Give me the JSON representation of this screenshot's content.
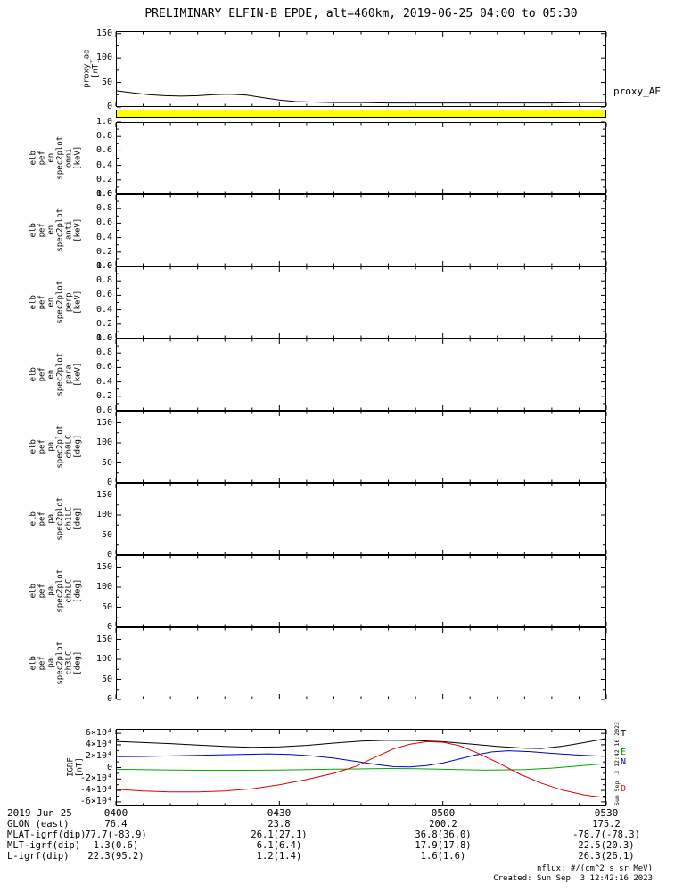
{
  "title": "PRELIMINARY ELFIN-B EPDE, alt=460km, 2019-06-25 04:00 to 05:30",
  "xaxis": {
    "range_min": [
      0,
      90
    ],
    "major_ticks_min": [
      0,
      30,
      60,
      90
    ],
    "major_tick_labels": [
      "0400",
      "0430",
      "0500",
      "0530"
    ],
    "minor_every_min": 5
  },
  "chart_data": [
    {
      "id": "proxy_ae",
      "type": "line",
      "ylabel_lines": [
        "proxy_ae",
        "[nT]"
      ],
      "ylim": [
        0,
        155
      ],
      "yticks": [
        0,
        50,
        100,
        150
      ],
      "ytick_labels": [
        "0",
        "50",
        "100",
        "150"
      ],
      "right_label": "proxy_AE",
      "series": [
        {
          "name": "proxy_AE",
          "color": "#000000",
          "points": [
            [
              0,
              33
            ],
            [
              3,
              29
            ],
            [
              6,
              25
            ],
            [
              9,
              23
            ],
            [
              12,
              22
            ],
            [
              15,
              23
            ],
            [
              18,
              25
            ],
            [
              21,
              26
            ],
            [
              24,
              24
            ],
            [
              27,
              19
            ],
            [
              30,
              14
            ],
            [
              33,
              11
            ],
            [
              36,
              10
            ],
            [
              40,
              9
            ],
            [
              45,
              9
            ],
            [
              50,
              8
            ],
            [
              55,
              8
            ],
            [
              60,
              8
            ],
            [
              65,
              8
            ],
            [
              70,
              8
            ],
            [
              75,
              8
            ],
            [
              80,
              8
            ],
            [
              85,
              9
            ],
            [
              90,
              9
            ]
          ]
        }
      ]
    },
    {
      "id": "epd_fast_bar",
      "type": "bar-strip",
      "fill": "#ffff00"
    },
    {
      "id": "elb_pef_en_spec2plot_omni",
      "type": "spec",
      "ylabel_lines": [
        "elb",
        "pef",
        "en",
        "spec2plot",
        "omni",
        "[keV]"
      ],
      "ylim": [
        0,
        1
      ],
      "yticks": [
        0,
        0.2,
        0.4,
        0.6,
        0.8,
        1
      ],
      "ytick_labels": [
        "0.0",
        "0.2",
        "0.4",
        "0.6",
        "0.8",
        "1.0"
      ],
      "series": []
    },
    {
      "id": "elb_pef_en_spec2plot_anti",
      "type": "spec",
      "ylabel_lines": [
        "elb",
        "pef",
        "en",
        "spec2plot",
        "anti",
        "[keV]"
      ],
      "ylim": [
        0,
        1
      ],
      "yticks": [
        0,
        0.2,
        0.4,
        0.6,
        0.8,
        1
      ],
      "ytick_labels": [
        "0.0",
        "0.2",
        "0.4",
        "0.6",
        "0.8",
        "1.0"
      ],
      "series": []
    },
    {
      "id": "elb_pef_en_spec2plot_perp",
      "type": "spec",
      "ylabel_lines": [
        "elb",
        "pef",
        "en",
        "spec2plot",
        "perp",
        "[keV]"
      ],
      "ylim": [
        0,
        1
      ],
      "yticks": [
        0,
        0.2,
        0.4,
        0.6,
        0.8,
        1
      ],
      "ytick_labels": [
        "0.0",
        "0.2",
        "0.4",
        "0.6",
        "0.8",
        "1.0"
      ],
      "series": []
    },
    {
      "id": "elb_pef_en_spec2plot_para",
      "type": "spec",
      "ylabel_lines": [
        "elb",
        "pef",
        "en",
        "spec2plot",
        "para",
        "[keV]"
      ],
      "ylim": [
        0,
        1
      ],
      "yticks": [
        0,
        0.2,
        0.4,
        0.6,
        0.8,
        1
      ],
      "ytick_labels": [
        "0.0",
        "0.2",
        "0.4",
        "0.6",
        "0.8",
        "1.0"
      ],
      "series": []
    },
    {
      "id": "elb_pef_pa_spec2plot_ch0LC",
      "type": "spec",
      "ylabel_lines": [
        "elb",
        "pef",
        "pa",
        "spec2plot",
        "ch0LC",
        "[deg]"
      ],
      "ylim": [
        0,
        180
      ],
      "yticks": [
        0,
        50,
        100,
        150
      ],
      "ytick_labels": [
        "0",
        "50",
        "100",
        "150"
      ],
      "series": []
    },
    {
      "id": "elb_pef_pa_spec2plot_ch1LC",
      "type": "spec",
      "ylabel_lines": [
        "elb",
        "pef",
        "pa",
        "spec2plot",
        "ch1LC",
        "[deg]"
      ],
      "ylim": [
        0,
        180
      ],
      "yticks": [
        0,
        50,
        100,
        150
      ],
      "ytick_labels": [
        "0",
        "50",
        "100",
        "150"
      ],
      "series": []
    },
    {
      "id": "elb_pef_pa_spec2plot_ch2LC",
      "type": "spec",
      "ylabel_lines": [
        "elb",
        "pef",
        "pa",
        "spec2plot",
        "ch2LC",
        "[deg]"
      ],
      "ylim": [
        0,
        180
      ],
      "yticks": [
        0,
        50,
        100,
        150
      ],
      "ytick_labels": [
        "0",
        "50",
        "100",
        "150"
      ],
      "series": []
    },
    {
      "id": "elb_pef_pa_spec2plot_ch3LC",
      "type": "spec",
      "ylabel_lines": [
        "elb",
        "pef",
        "pa",
        "spec2plot",
        "ch3LC",
        "[deg]"
      ],
      "ylim": [
        0,
        180
      ],
      "yticks": [
        0,
        50,
        100,
        150
      ],
      "ytick_labels": [
        "0",
        "50",
        "100",
        "150"
      ],
      "series": []
    },
    {
      "id": "igrf",
      "type": "line",
      "ylabel_lines": [
        "IGRF",
        "[nT]"
      ],
      "ylim": [
        -68000,
        68000
      ],
      "yticks": [
        -60000,
        -40000,
        -20000,
        0,
        20000,
        40000,
        60000
      ],
      "ytick_labels": [
        "-6×10⁴",
        "-4×10⁴",
        "-2×10⁴",
        "0",
        "2×10⁴",
        "4×10⁴",
        "6×10⁴"
      ],
      "series": [
        {
          "name": "T",
          "label": "T",
          "label_frac": 0.06,
          "color": "#000000",
          "points": [
            [
              0,
              46000
            ],
            [
              5,
              44000
            ],
            [
              10,
              42000
            ],
            [
              15,
              39500
            ],
            [
              20,
              37000
            ],
            [
              25,
              35500
            ],
            [
              30,
              36500
            ],
            [
              35,
              39000
            ],
            [
              40,
              43000
            ],
            [
              45,
              46500
            ],
            [
              50,
              48000
            ],
            [
              55,
              47500
            ],
            [
              60,
              45500
            ],
            [
              65,
              41500
            ],
            [
              70,
              37000
            ],
            [
              75,
              34000
            ],
            [
              78,
              33500
            ],
            [
              82,
              37500
            ],
            [
              86,
              44000
            ],
            [
              90,
              51000
            ]
          ]
        },
        {
          "name": "E",
          "label": "E",
          "label_frac": 0.3,
          "color": "#00a800",
          "points": [
            [
              0,
              -3000
            ],
            [
              10,
              -4200
            ],
            [
              20,
              -4800
            ],
            [
              30,
              -4200
            ],
            [
              40,
              -2800
            ],
            [
              50,
              -1500
            ],
            [
              55,
              -1800
            ],
            [
              60,
              -3000
            ],
            [
              68,
              -4500
            ],
            [
              75,
              -3500
            ],
            [
              80,
              -1000
            ],
            [
              85,
              3000
            ],
            [
              90,
              7000
            ]
          ]
        },
        {
          "name": "N",
          "label": "N",
          "label_frac": 0.42,
          "color": "#0000c8",
          "points": [
            [
              0,
              19000
            ],
            [
              5,
              19500
            ],
            [
              10,
              20500
            ],
            [
              15,
              21500
            ],
            [
              20,
              22500
            ],
            [
              25,
              23500
            ],
            [
              28,
              24000
            ],
            [
              32,
              23000
            ],
            [
              36,
              20500
            ],
            [
              40,
              16500
            ],
            [
              44,
              11000
            ],
            [
              48,
              5000
            ],
            [
              51,
              1500
            ],
            [
              54,
              1200
            ],
            [
              57,
              3500
            ],
            [
              60,
              8000
            ],
            [
              63,
              15000
            ],
            [
              66,
              22000
            ],
            [
              69,
              27500
            ],
            [
              72,
              29500
            ],
            [
              76,
              28000
            ],
            [
              80,
              25000
            ],
            [
              84,
              22500
            ],
            [
              88,
              20500
            ],
            [
              90,
              19800
            ]
          ]
        },
        {
          "name": "D",
          "label": "D",
          "label_frac": 0.77,
          "color": "#dc0000",
          "points": [
            [
              0,
              -38000
            ],
            [
              5,
              -41000
            ],
            [
              10,
              -42500
            ],
            [
              15,
              -42500
            ],
            [
              20,
              -41000
            ],
            [
              25,
              -37000
            ],
            [
              30,
              -30000
            ],
            [
              35,
              -21000
            ],
            [
              40,
              -10000
            ],
            [
              44,
              2000
            ],
            [
              48,
              20000
            ],
            [
              51,
              33000
            ],
            [
              54,
              41000
            ],
            [
              57,
              45500
            ],
            [
              60,
              44500
            ],
            [
              63,
              38500
            ],
            [
              66,
              27000
            ],
            [
              70,
              9000
            ],
            [
              74,
              -11000
            ],
            [
              78,
              -27000
            ],
            [
              82,
              -39500
            ],
            [
              86,
              -48000
            ],
            [
              90,
              -53000
            ]
          ]
        }
      ]
    }
  ],
  "bottom_rows": [
    {
      "label": "2019 Jun 25",
      "values": [
        "0400",
        "0430",
        "0500",
        "0530"
      ]
    },
    {
      "label": "GLON (east)",
      "values": [
        "76.4",
        "23.8",
        "200.2",
        "175.2"
      ]
    },
    {
      "label": "MLAT-igrf(dip)",
      "values": [
        "77.7(-83.9)",
        "26.1(27.1)",
        "36.8(36.0)",
        "-78.7(-78.3)"
      ]
    },
    {
      "label": "MLT-igrf(dip)",
      "values": [
        "1.3(0.6)",
        "6.1(6.4)",
        "17.9(17.8)",
        "22.5(20.3)"
      ]
    },
    {
      "label": "L-igrf(dip)",
      "values": [
        "22.3(95.2)",
        "1.2(1.4)",
        "1.6(1.6)",
        "26.3(26.1)"
      ]
    }
  ],
  "footer": {
    "nflux": "nflux: #/(cm^2 s sr MeV)",
    "created": "Created: Sun Sep  3 12:42:16 2023"
  },
  "side_timestamp": "Sun Sep  3 12:42:16 2023"
}
